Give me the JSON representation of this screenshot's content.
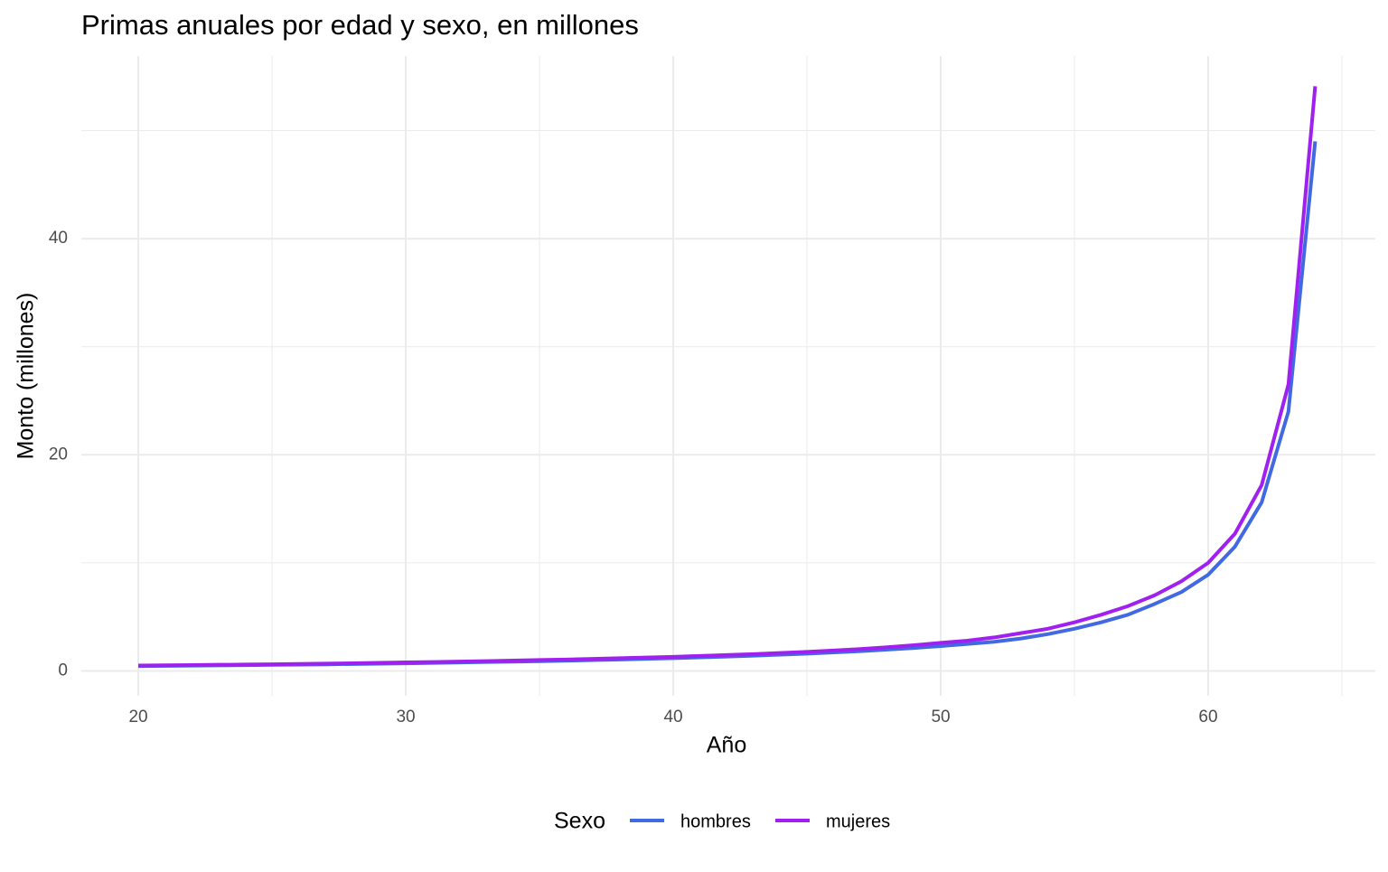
{
  "chart_data": {
    "type": "line",
    "title": "Primas anuales por edad y sexo, en millones",
    "x_label": "Año",
    "y_label": "Monto (millones)",
    "legend_title": "Sexo",
    "legend_position": "bottom",
    "x": [
      20,
      21,
      22,
      23,
      24,
      25,
      26,
      27,
      28,
      29,
      30,
      31,
      32,
      33,
      34,
      35,
      36,
      37,
      38,
      39,
      40,
      41,
      42,
      43,
      44,
      45,
      46,
      47,
      48,
      49,
      50,
      51,
      52,
      53,
      54,
      55,
      56,
      57,
      58,
      59,
      60,
      61,
      62,
      63,
      64
    ],
    "series": [
      {
        "name": "hombres",
        "color": "#4169e1",
        "values": [
          0.45,
          0.47,
          0.49,
          0.51,
          0.53,
          0.56,
          0.58,
          0.61,
          0.64,
          0.67,
          0.7,
          0.74,
          0.78,
          0.82,
          0.86,
          0.9,
          0.95,
          1.0,
          1.06,
          1.12,
          1.18,
          1.25,
          1.33,
          1.41,
          1.5,
          1.6,
          1.71,
          1.83,
          1.97,
          2.12,
          2.3,
          2.5,
          2.7,
          3.0,
          3.4,
          3.9,
          4.5,
          5.2,
          6.2,
          7.3,
          8.9,
          11.5,
          15.6,
          24.0,
          49.0
        ]
      },
      {
        "name": "mujeres",
        "color": "#a020f0",
        "values": [
          0.5,
          0.52,
          0.54,
          0.57,
          0.59,
          0.62,
          0.65,
          0.68,
          0.71,
          0.75,
          0.79,
          0.83,
          0.87,
          0.91,
          0.96,
          1.01,
          1.06,
          1.12,
          1.18,
          1.24,
          1.31,
          1.39,
          1.47,
          1.56,
          1.66,
          1.77,
          1.89,
          2.03,
          2.19,
          2.38,
          2.6,
          2.8,
          3.1,
          3.5,
          3.9,
          4.5,
          5.2,
          6.0,
          7.0,
          8.3,
          10.0,
          12.7,
          17.2,
          26.5,
          54.1
        ]
      }
    ],
    "xlim": [
      17.87,
      66.25
    ],
    "ylim": [
      -2.3,
      56.9
    ],
    "xticks": [
      20,
      30,
      40,
      50,
      60
    ],
    "yticks": [
      0,
      20,
      40
    ],
    "xminorticks": [
      25,
      35,
      45,
      55,
      65
    ],
    "yminorticks": [
      10,
      30,
      50
    ],
    "grid": true
  }
}
